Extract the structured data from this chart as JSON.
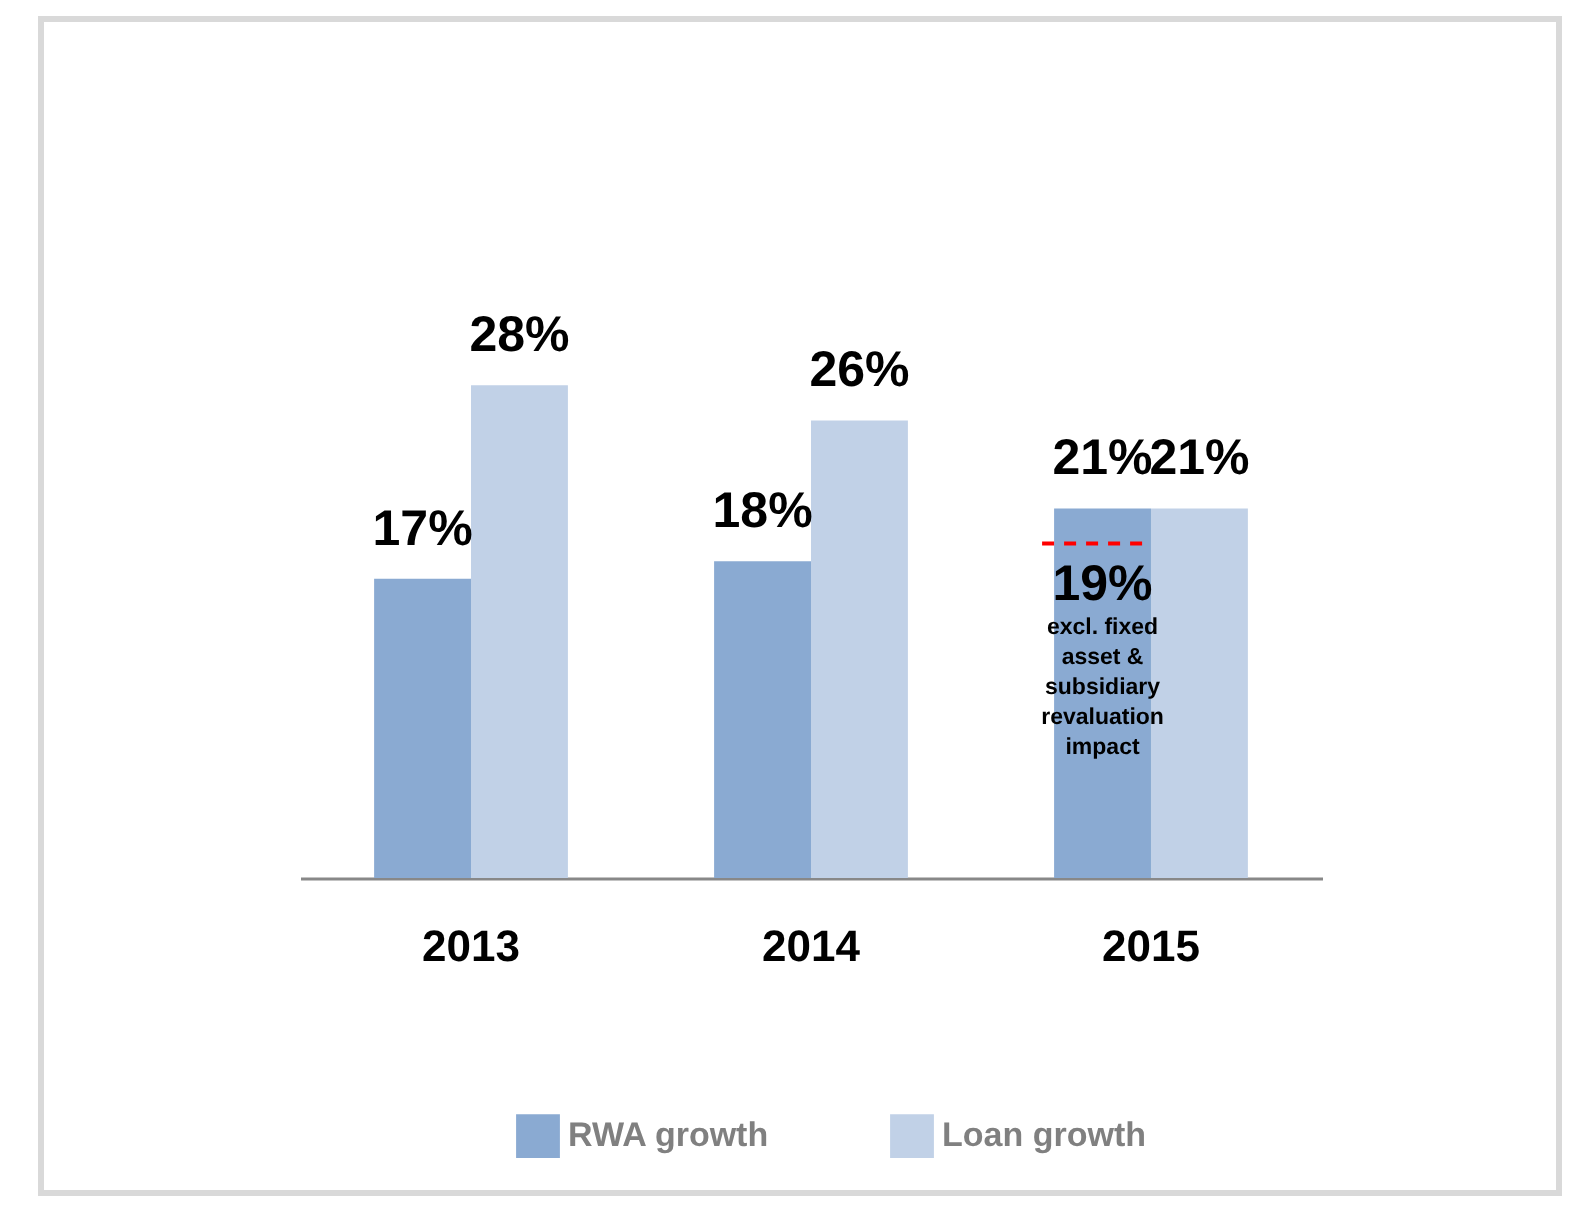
{
  "chart_data": {
    "type": "bar",
    "categories": [
      "2013",
      "2014",
      "2015"
    ],
    "series": [
      {
        "name": "RWA growth",
        "color": "#8aaad2",
        "values": [
          17,
          18,
          21
        ],
        "value_labels": [
          "17%",
          "18%",
          "21%"
        ]
      },
      {
        "name": "Loan growth",
        "color": "#c1d1e7",
        "values": [
          28,
          26,
          21
        ],
        "value_labels": [
          "28%",
          "26%",
          "21%"
        ]
      }
    ],
    "ref_lines": [
      {
        "axis": "y",
        "value": 19,
        "color": "#ff0000",
        "line_style": "dashed"
      }
    ],
    "annotations": [
      {
        "text": "19%",
        "x": "2015",
        "y": 19
      },
      "excl. fixed asset & subsidiary revaluation impact"
    ],
    "legend": "bottom",
    "tick_labels": "x"
  }
}
